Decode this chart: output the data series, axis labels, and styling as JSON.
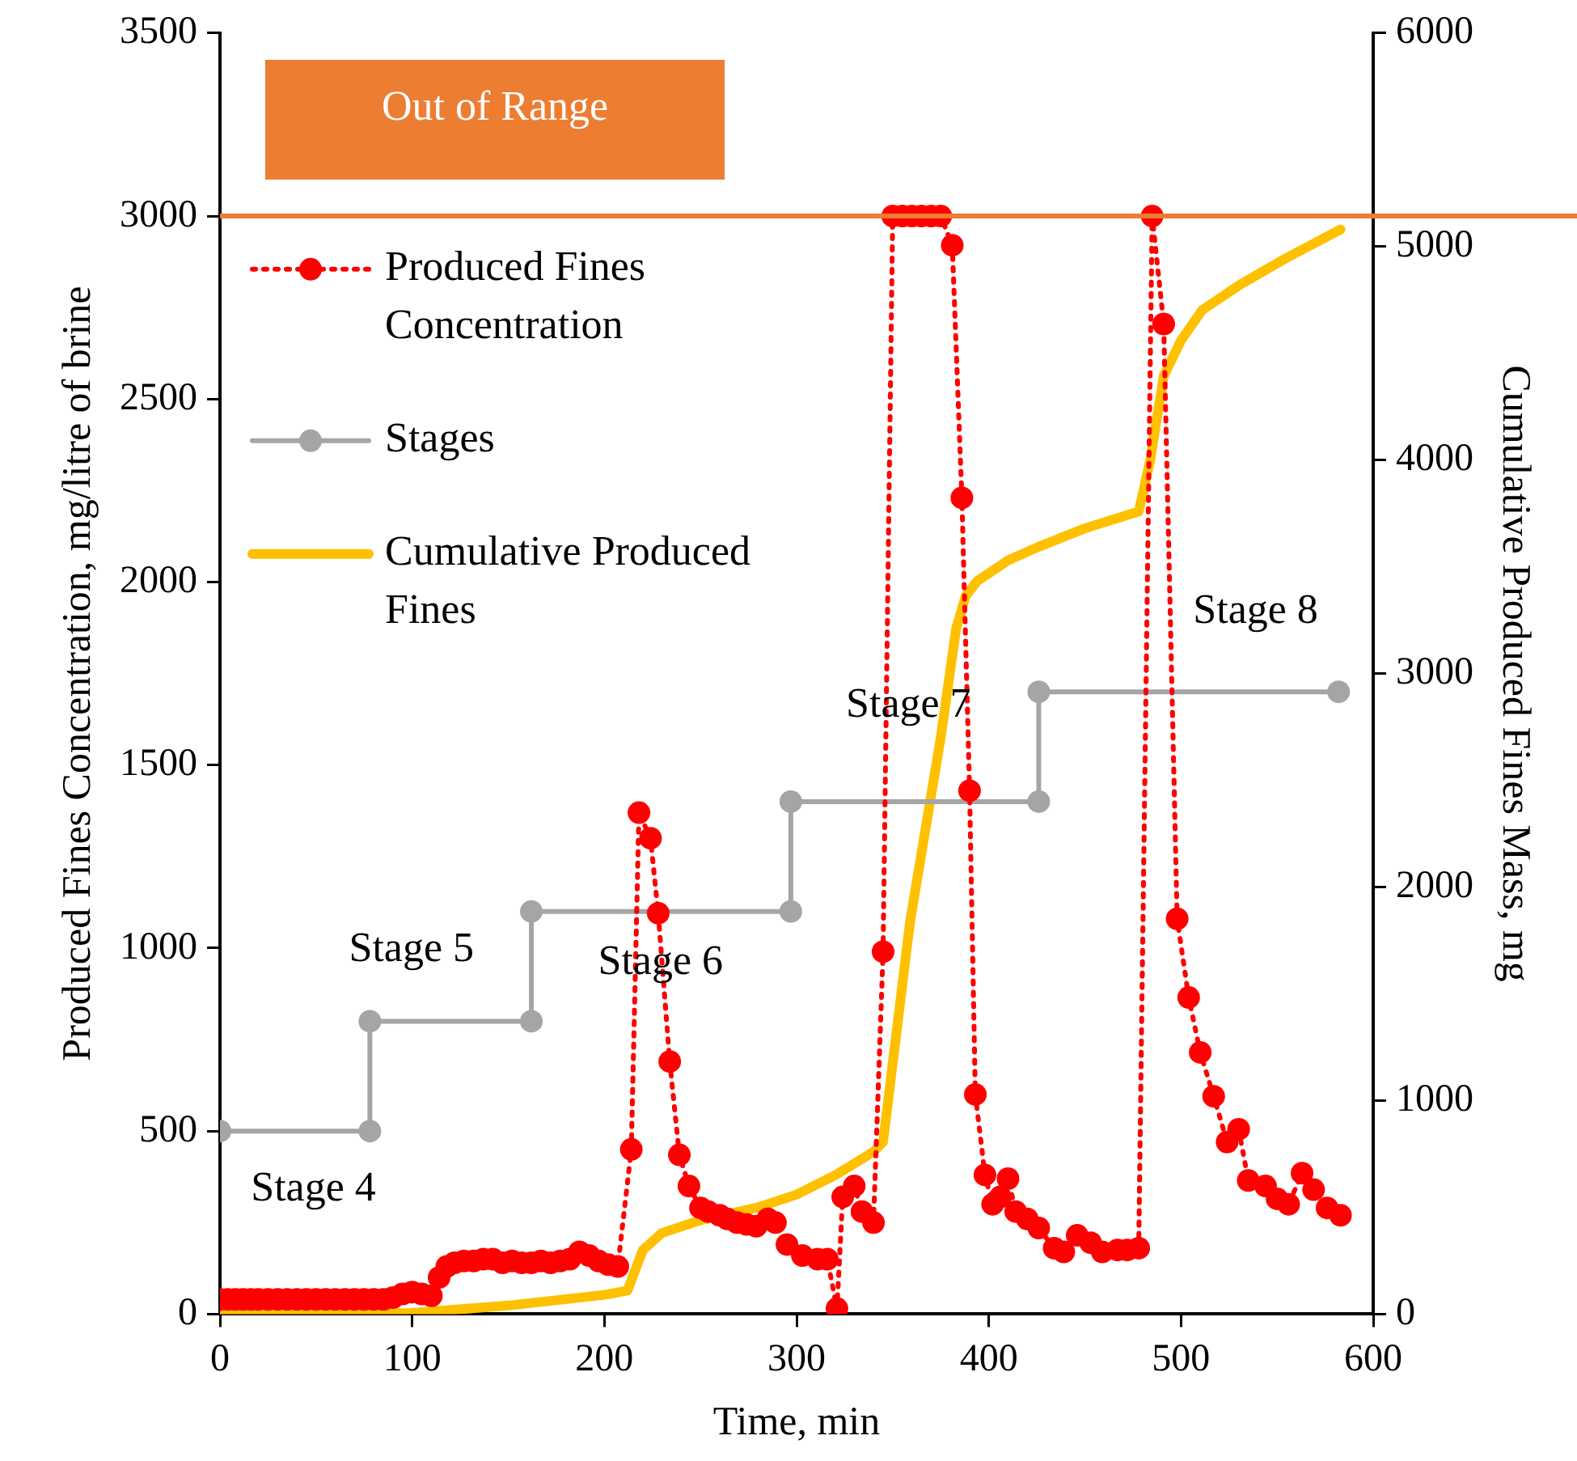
{
  "chart_data": {
    "type": "line",
    "xlabel": "Time, min",
    "ylabel": "Produced Fines Concentration, mg/litre of brine",
    "y2label": "Cumulative Produced Fines Mass, mg",
    "xlim": [
      0,
      600
    ],
    "xticks": [
      0,
      100,
      200,
      300,
      400,
      500,
      600
    ],
    "ylim": [
      0,
      3500
    ],
    "yticks": [
      0,
      500,
      1000,
      1500,
      2000,
      2500,
      3000,
      3500
    ],
    "y2lim": [
      0,
      6000
    ],
    "y2ticks": [
      0,
      1000,
      2000,
      3000,
      4000,
      5000,
      6000
    ],
    "grid": false,
    "legend": "top left",
    "series": [
      {
        "name": "Produced Fines Concentration",
        "color": "#ff0000",
        "marker": "circle",
        "line_style": "dotted",
        "x": [
          0,
          4,
          8,
          12,
          16,
          20,
          25,
          30,
          35,
          40,
          45,
          50,
          55,
          60,
          65,
          70,
          75,
          80,
          85,
          90,
          95,
          100,
          105,
          110,
          114,
          118,
          122,
          127,
          132,
          137,
          142,
          147,
          152,
          157,
          162,
          167,
          172,
          177,
          182,
          187,
          192,
          197,
          202,
          207,
          214,
          218,
          224,
          228,
          234,
          239,
          244,
          250,
          254,
          260,
          264,
          269,
          274,
          279,
          285,
          289,
          295,
          303,
          311,
          316,
          321,
          324,
          330,
          334,
          340,
          345,
          350,
          355,
          360,
          365,
          370,
          375,
          381,
          386,
          390,
          393,
          398,
          402,
          406,
          410,
          414,
          420,
          426,
          434,
          439,
          446,
          453,
          459,
          467,
          472,
          478,
          485,
          491,
          498,
          504,
          510,
          517,
          524,
          530,
          535,
          544,
          550,
          556,
          563,
          569,
          576,
          583
        ],
        "values": [
          40,
          40,
          40,
          40,
          40,
          40,
          40,
          40,
          40,
          40,
          40,
          40,
          40,
          40,
          40,
          40,
          40,
          40,
          40,
          45,
          55,
          60,
          55,
          50,
          100,
          130,
          140,
          145,
          145,
          150,
          150,
          140,
          145,
          140,
          140,
          145,
          140,
          145,
          150,
          170,
          160,
          145,
          135,
          130,
          450,
          1370,
          1300,
          1095,
          690,
          435,
          350,
          290,
          280,
          270,
          260,
          250,
          245,
          240,
          260,
          250,
          190,
          160,
          150,
          150,
          15,
          320,
          350,
          280,
          250,
          990,
          3000,
          3000,
          3000,
          3000,
          3000,
          3000,
          2920,
          2230,
          1430,
          600,
          380,
          300,
          320,
          370,
          280,
          260,
          235,
          180,
          170,
          215,
          195,
          170,
          175,
          175,
          180,
          3000,
          2705,
          1080,
          865,
          715,
          595,
          470,
          505,
          365,
          350,
          315,
          300,
          385,
          340,
          290,
          270
        ]
      },
      {
        "name": "Stages",
        "color": "#a5a5a5",
        "marker": "circle",
        "line_style": "solid",
        "x": [
          0,
          78,
          78,
          162,
          162,
          297,
          297,
          426,
          426,
          582
        ],
        "values": [
          500,
          500,
          800,
          800,
          1100,
          1100,
          1400,
          1400,
          1700,
          1700
        ]
      },
      {
        "name": "Cumulative Produced Fines",
        "axis": "y2",
        "color": "#ffc000",
        "marker": "none",
        "line_style": "solid",
        "x": [
          0,
          100,
          150,
          200,
          212,
          220,
          230,
          250,
          280,
          300,
          320,
          340,
          345,
          359,
          375,
          383,
          388,
          394,
          410,
          426,
          450,
          474,
          478,
          484,
          491,
          500,
          511,
          531,
          554,
          583
        ],
        "values": [
          0,
          5,
          40,
          90,
          110,
          300,
          380,
          440,
          500,
          560,
          650,
          760,
          806,
          1835,
          2700,
          3210,
          3364,
          3433,
          3530,
          3594,
          3680,
          3748,
          3758,
          4000,
          4393,
          4560,
          4702,
          4823,
          4942,
          5080
        ]
      }
    ],
    "ref_lines": [
      {
        "axis": "y",
        "value": 3000,
        "label": "Out of Range",
        "color": "#ed7d31"
      }
    ],
    "annotations": [
      "Stage 4",
      "Stage 5",
      "Stage 6",
      "Stage 7",
      "Stage 8"
    ]
  }
}
